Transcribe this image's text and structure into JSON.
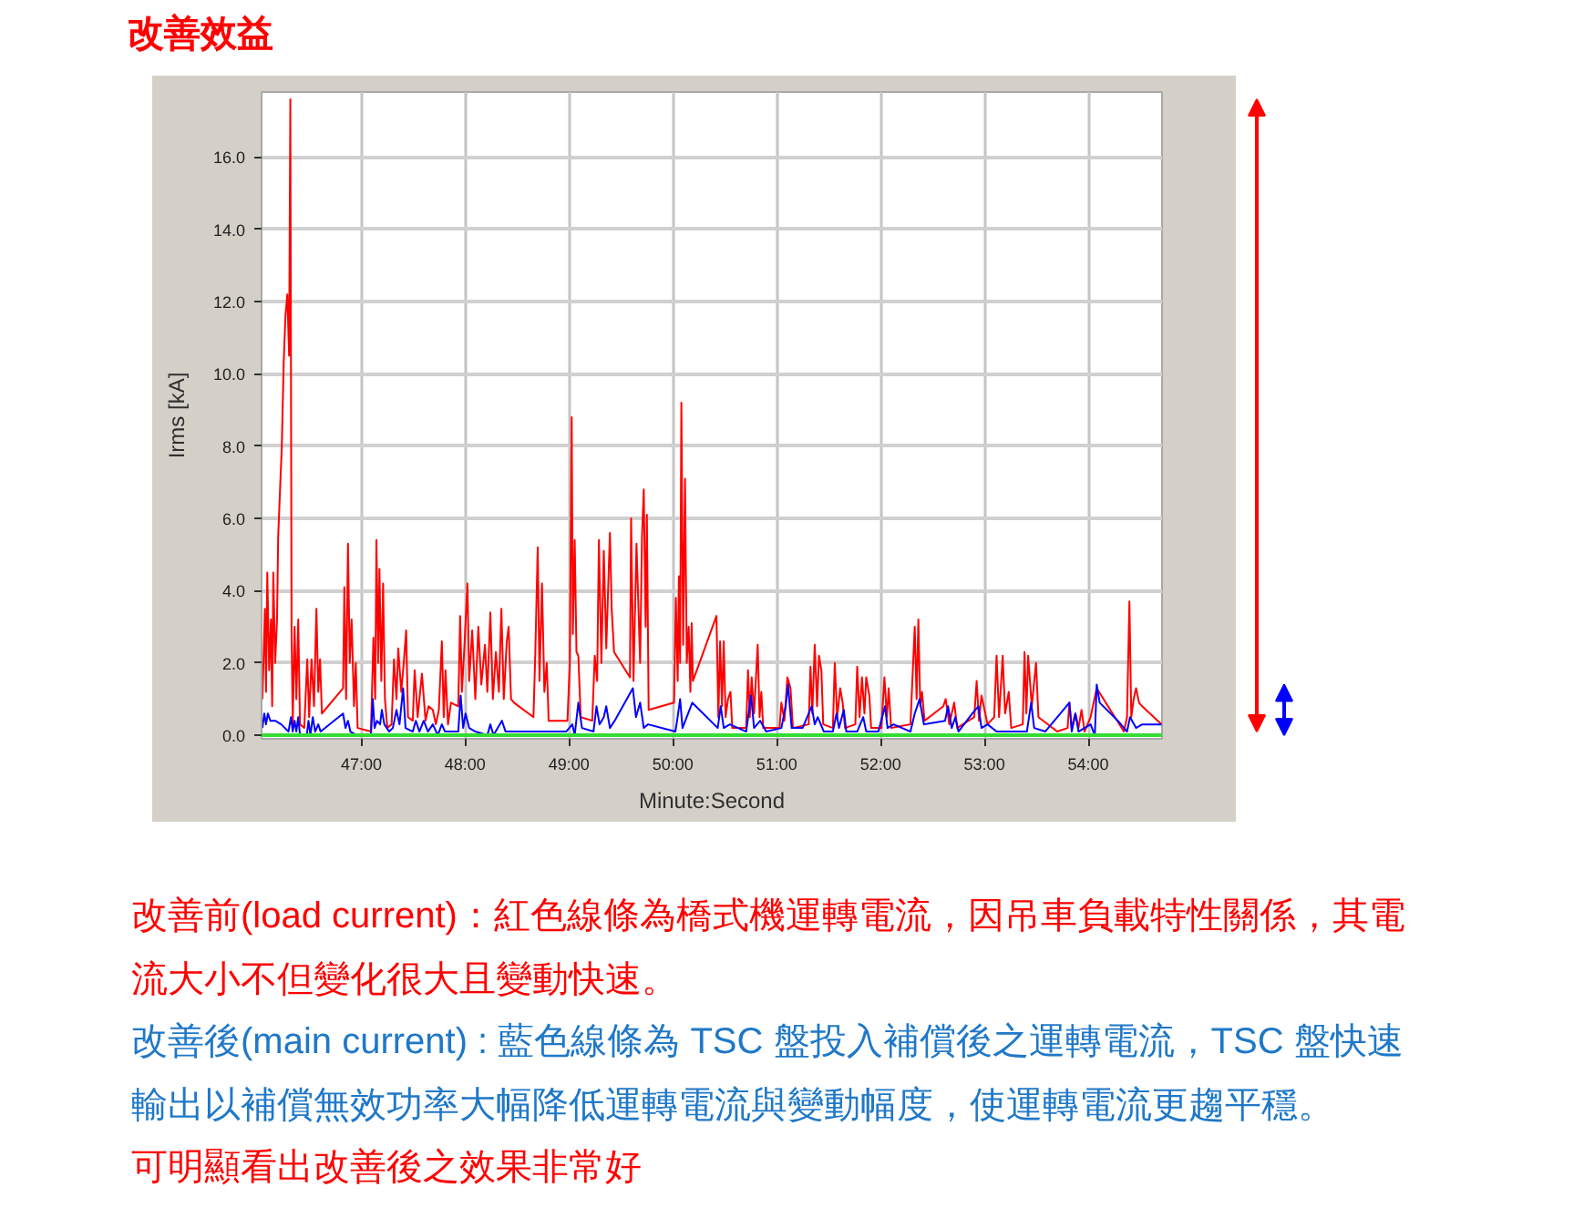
{
  "chart_data": {
    "type": "line",
    "title": "改善效益",
    "xlabel": "Minute:Second",
    "ylabel": "Irms [kA]",
    "xlim": [
      46.04,
      54.71
    ],
    "ylim": [
      -0.1,
      17.8
    ],
    "xticks": [
      {
        "value": 47,
        "label": "47:00"
      },
      {
        "value": 48,
        "label": "48:00"
      },
      {
        "value": 49,
        "label": "49:00"
      },
      {
        "value": 50,
        "label": "50:00"
      },
      {
        "value": 51,
        "label": "51:00"
      },
      {
        "value": 52,
        "label": "52:00"
      },
      {
        "value": 53,
        "label": "53:00"
      },
      {
        "value": 54,
        "label": "54:00"
      }
    ],
    "yticks": [
      {
        "value": 0,
        "label": "0.0"
      },
      {
        "value": 2,
        "label": "2.0"
      },
      {
        "value": 4,
        "label": "4.0"
      },
      {
        "value": 6,
        "label": "6.0"
      },
      {
        "value": 8,
        "label": "8.0"
      },
      {
        "value": 10,
        "label": "10.0"
      },
      {
        "value": 12,
        "label": "12.0"
      },
      {
        "value": 14,
        "label": "14.0"
      },
      {
        "value": 16,
        "label": "16.0"
      }
    ],
    "grid": true,
    "series": [
      {
        "color": "#ff0000",
        "x": [
          46.048,
          46.06,
          46.072,
          46.083,
          46.095,
          46.113,
          46.13,
          46.142,
          46.153,
          46.171,
          46.189,
          46.2,
          46.218,
          46.235,
          46.253,
          46.27,
          46.288,
          46.305,
          46.317,
          46.329,
          46.34,
          46.358,
          46.375,
          46.393,
          46.41,
          46.451,
          46.48,
          46.498,
          46.521,
          46.545,
          46.568,
          46.586,
          46.603,
          46.621,
          46.825,
          46.837,
          46.854,
          46.872,
          46.889,
          46.907,
          46.93,
          46.947,
          46.965,
          47.093,
          47.117,
          47.134,
          47.146,
          47.163,
          47.175,
          47.193,
          47.21,
          47.228,
          47.251,
          47.292,
          47.315,
          47.339,
          47.356,
          47.385,
          47.409,
          47.432,
          47.45,
          47.496,
          47.514,
          47.543,
          47.584,
          47.619,
          47.648,
          47.689,
          47.718,
          47.747,
          47.776,
          47.794,
          47.811,
          47.835,
          47.864,
          47.934,
          47.952,
          47.969,
          47.992,
          48.022,
          48.039,
          48.068,
          48.098,
          48.127,
          48.156,
          48.191,
          48.214,
          48.243,
          48.267,
          48.296,
          48.325,
          48.349,
          48.372,
          48.401,
          48.419,
          48.442,
          48.471,
          48.658,
          48.675,
          48.699,
          48.716,
          48.74,
          48.763,
          48.786,
          48.804,
          48.985,
          49.008,
          49.026,
          49.037,
          49.055,
          49.072,
          49.09,
          49.113,
          49.224,
          49.248,
          49.271,
          49.288,
          49.312,
          49.335,
          49.359,
          49.394,
          49.411,
          49.434,
          49.587,
          49.598,
          49.621,
          49.65,
          49.685,
          49.703,
          49.72,
          49.738,
          49.75,
          49.767,
          50.012,
          50.029,
          50.047,
          50.058,
          50.07,
          50.082,
          50.099,
          50.117,
          50.134,
          50.152,
          50.169,
          50.181,
          50.193,
          50.42,
          50.438,
          50.455,
          50.473,
          50.49,
          50.508,
          50.531,
          50.555,
          50.572,
          50.706,
          50.724,
          50.741,
          50.759,
          50.782,
          50.817,
          50.835,
          50.852,
          50.87,
          51.027,
          51.045,
          51.074,
          51.103,
          51.133,
          51.156,
          51.308,
          51.325,
          51.343,
          51.366,
          51.389,
          51.407,
          51.43,
          51.448,
          51.541,
          51.559,
          51.582,
          51.611,
          51.635,
          51.658,
          51.757,
          51.775,
          51.798,
          51.821,
          51.845,
          51.862,
          51.892,
          51.909,
          52.008,
          52.037,
          52.061,
          52.078,
          52.102,
          52.288,
          52.306,
          52.329,
          52.347,
          52.364,
          52.382,
          52.399,
          52.423,
          52.604,
          52.627,
          52.662,
          52.709,
          52.738,
          52.902,
          52.925,
          52.948,
          52.972,
          53.03,
          53.094,
          53.117,
          53.141,
          53.176,
          53.199,
          53.234,
          53.258,
          53.369,
          53.386,
          53.404,
          53.421,
          53.456,
          53.497,
          53.52,
          53.701,
          53.801,
          53.818,
          53.841,
          53.876,
          53.906,
          53.935,
          53.964,
          54.022,
          54.081,
          54.343,
          54.373,
          54.396,
          54.414,
          54.437,
          54.46,
          54.489,
          54.519,
          54.705
        ],
        "values": [
          1.0,
          2.2,
          3.5,
          1.2,
          4.5,
          1.8,
          3.2,
          0.8,
          4.5,
          2.0,
          3.2,
          5.5,
          6.8,
          8.0,
          10.3,
          11.6,
          12.2,
          10.5,
          17.6,
          2.9,
          0.3,
          3.0,
          1.0,
          3.2,
          0.3,
          0.2,
          2.1,
          0.5,
          2.1,
          0.8,
          3.5,
          1.2,
          2.1,
          0.6,
          1.3,
          4.1,
          1.0,
          5.3,
          2.0,
          3.2,
          0.8,
          2.0,
          0.2,
          0.1,
          2.7,
          1.0,
          5.4,
          2.0,
          4.6,
          1.5,
          4.2,
          1.0,
          0.2,
          0.3,
          2.1,
          1.0,
          2.4,
          1.2,
          2.0,
          2.9,
          0.5,
          0.4,
          1.8,
          0.5,
          1.7,
          0.4,
          0.8,
          0.7,
          0.3,
          0.7,
          2.6,
          0.5,
          1.8,
          0.3,
          0.9,
          0.8,
          3.3,
          1.2,
          2.4,
          4.2,
          1.5,
          2.9,
          1.0,
          3.0,
          1.4,
          2.5,
          1.2,
          3.4,
          1.0,
          2.3,
          1.2,
          3.5,
          1.0,
          2.6,
          3.0,
          1.0,
          0.9,
          0.5,
          2.2,
          5.2,
          1.5,
          4.2,
          1.2,
          2.0,
          0.4,
          0.4,
          2.0,
          8.8,
          2.8,
          5.4,
          2.3,
          2.2,
          0.5,
          0.4,
          2.2,
          1.5,
          5.4,
          2.0,
          5.1,
          2.4,
          5.6,
          3.5,
          2.3,
          1.6,
          6.0,
          1.5,
          5.3,
          2.0,
          5.5,
          6.8,
          3.0,
          6.1,
          0.7,
          0.9,
          3.8,
          1.5,
          4.4,
          2.0,
          9.2,
          2.5,
          7.1,
          2.0,
          3.0,
          1.2,
          3.1,
          1.5,
          3.3,
          0.5,
          2.6,
          0.8,
          2.6,
          0.5,
          1.0,
          1.2,
          0.2,
          0.2,
          1.8,
          0.5,
          1.6,
          0.6,
          2.5,
          0.5,
          1.2,
          0.2,
          0.2,
          0.9,
          0.4,
          1.6,
          1.3,
          0.2,
          0.3,
          1.9,
          0.6,
          2.5,
          0.8,
          2.2,
          1.8,
          0.3,
          0.2,
          2.0,
          0.5,
          1.3,
          0.9,
          0.2,
          0.3,
          1.9,
          0.5,
          1.6,
          0.6,
          1.6,
          1.1,
          0.2,
          0.2,
          1.6,
          0.5,
          1.3,
          0.2,
          0.3,
          1.5,
          3.0,
          1.0,
          3.2,
          0.8,
          1.2,
          0.4,
          0.8,
          1.0,
          0.3,
          0.9,
          0.2,
          0.5,
          1.5,
          0.4,
          1.1,
          0.3,
          0.5,
          2.2,
          0.5,
          2.2,
          0.6,
          1.2,
          0.2,
          0.3,
          2.3,
          0.6,
          2.2,
          0.8,
          2.0,
          0.5,
          0.1,
          0.2,
          0.9,
          0.2,
          0.6,
          0.2,
          0.7,
          0.1,
          0.5,
          1.3,
          0.1,
          0.5,
          3.7,
          0.5,
          1.0,
          1.3,
          0.9,
          0.8,
          0.3
        ]
      },
      {
        "color": "#0000ff",
        "x": [
          46.048,
          46.066,
          46.083,
          46.101,
          46.124,
          46.171,
          46.229,
          46.299,
          46.323,
          46.34,
          46.358,
          46.375,
          46.393,
          46.41,
          46.475,
          46.492,
          46.51,
          46.533,
          46.556,
          46.586,
          46.609,
          46.825,
          46.848,
          46.872,
          46.895,
          46.959,
          47.093,
          47.111,
          47.128,
          47.152,
          47.181,
          47.198,
          47.222,
          47.269,
          47.304,
          47.339,
          47.368,
          47.403,
          47.426,
          47.496,
          47.525,
          47.56,
          47.601,
          47.642,
          47.689,
          47.736,
          47.776,
          47.806,
          47.934,
          47.957,
          47.981,
          48.004,
          48.039,
          48.098,
          48.214,
          48.243,
          48.273,
          48.354,
          48.389,
          48.448,
          48.681,
          48.973,
          49.032,
          49.055,
          49.09,
          49.125,
          49.236,
          49.265,
          49.294,
          49.335,
          49.359,
          49.394,
          49.44,
          49.615,
          49.645,
          49.685,
          49.72,
          49.761,
          50.024,
          50.041,
          50.07,
          50.093,
          50.187,
          50.432,
          50.461,
          50.49,
          50.549,
          50.706,
          50.753,
          50.782,
          50.841,
          50.899,
          51.045,
          51.086,
          51.109,
          51.144,
          51.249,
          51.337,
          51.366,
          51.395,
          51.454,
          51.541,
          51.576,
          51.6,
          51.646,
          51.67,
          51.775,
          51.833,
          51.862,
          51.979,
          52.043,
          52.067,
          52.125,
          52.288,
          52.329,
          52.376,
          52.417,
          52.621,
          52.65,
          52.685,
          52.72,
          52.75,
          52.884,
          52.942,
          52.972,
          53.03,
          53.117,
          53.205,
          53.409,
          53.45,
          53.479,
          53.585,
          53.818,
          53.841,
          53.876,
          53.906,
          54.022,
          54.063,
          54.081,
          54.11,
          54.285,
          54.373,
          54.402,
          54.46,
          54.519,
          54.705
        ],
        "values": [
          0.2,
          0.6,
          0.3,
          0.6,
          0.4,
          0.4,
          0.3,
          0.1,
          0.5,
          0.1,
          0.4,
          0.1,
          0.5,
          0.0,
          0.0,
          0.4,
          0.0,
          0.5,
          0.1,
          0.3,
          0.1,
          0.6,
          0.2,
          0.4,
          0.1,
          0.0,
          0.0,
          1.0,
          0.2,
          0.4,
          0.3,
          0.7,
          0.3,
          0.1,
          0.2,
          0.7,
          0.3,
          1.3,
          0.2,
          0.1,
          0.4,
          0.1,
          0.4,
          0.1,
          0.3,
          0.0,
          0.3,
          0.1,
          0.1,
          1.1,
          0.2,
          0.6,
          0.2,
          0.1,
          0.0,
          0.3,
          0.0,
          0.4,
          0.1,
          0.1,
          0.1,
          0.1,
          0.3,
          0.0,
          0.9,
          0.2,
          0.1,
          0.8,
          0.3,
          0.5,
          0.8,
          0.2,
          0.4,
          1.3,
          0.5,
          0.9,
          0.2,
          0.3,
          0.1,
          0.4,
          1.0,
          0.2,
          0.9,
          0.2,
          0.8,
          0.2,
          0.3,
          0.1,
          1.1,
          0.2,
          0.4,
          0.1,
          0.2,
          0.8,
          1.4,
          0.2,
          0.2,
          0.8,
          0.3,
          0.5,
          0.1,
          0.1,
          0.6,
          0.2,
          0.7,
          0.1,
          0.1,
          0.5,
          0.1,
          0.1,
          0.8,
          0.2,
          0.3,
          0.1,
          0.6,
          1.0,
          0.3,
          0.4,
          0.8,
          0.2,
          0.5,
          0.1,
          0.6,
          0.8,
          0.2,
          0.3,
          0.1,
          0.1,
          0.1,
          0.9,
          0.2,
          0.1,
          0.9,
          0.1,
          0.6,
          0.1,
          0.3,
          0.0,
          1.4,
          0.9,
          0.4,
          0.1,
          0.5,
          0.2,
          0.3,
          0.3
        ]
      }
    ],
    "ref_lines": [
      {
        "axis": "y",
        "value": 0,
        "color": "#33dd33"
      }
    ],
    "annotations": [
      "改善前(load current)：紅色線條為橋式機運轉電流，因吊車負載特性關係，其電流大小不但變化很大且變動快速。",
      "改善後(main current) : 藍色線條為 TSC 盤投入補償後之運轉電流，TSC 盤快速輸出以補償無效功率大幅降低運轉電流與變動幅度，使運轉電流更趨平穩。",
      "可明顯看出改善後之效果非常好"
    ]
  }
}
